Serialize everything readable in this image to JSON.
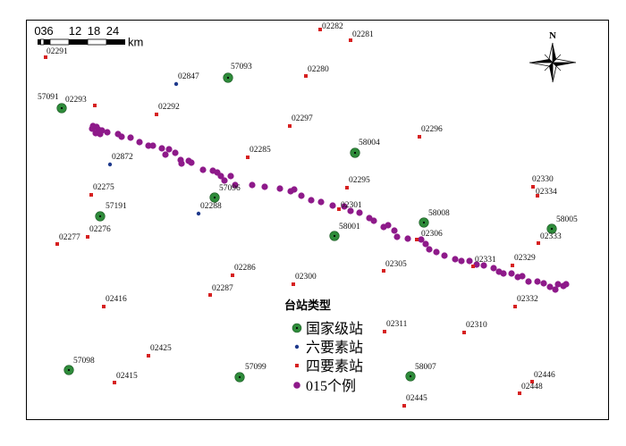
{
  "scale_bar": {
    "ticks": [
      "0",
      "3",
      "6",
      "12",
      "18",
      "24"
    ],
    "unit": "km"
  },
  "north_arrow": {
    "label": "N"
  },
  "legend": {
    "title": "台站类型",
    "items": [
      {
        "type": "national",
        "label": "国家级站",
        "color": "#2e8b3a"
      },
      {
        "type": "six",
        "label": "六要素站",
        "color": "#1f3a8c"
      },
      {
        "type": "four",
        "label": "四要素站",
        "color": "#d62020"
      },
      {
        "type": "case",
        "label": "015个例",
        "color": "#8e1a8a"
      }
    ]
  },
  "stations": [
    {
      "id": "57093",
      "type": "national"
    },
    {
      "id": "57091",
      "type": "national"
    },
    {
      "id": "58004",
      "type": "national"
    },
    {
      "id": "57096",
      "type": "national"
    },
    {
      "id": "57191",
      "type": "national"
    },
    {
      "id": "58008",
      "type": "national"
    },
    {
      "id": "58001",
      "type": "national"
    },
    {
      "id": "58005",
      "type": "national"
    },
    {
      "id": "57098",
      "type": "national"
    },
    {
      "id": "57099",
      "type": "national"
    },
    {
      "id": "58007",
      "type": "national"
    },
    {
      "id": "02847",
      "type": "six"
    },
    {
      "id": "02872",
      "type": "six"
    },
    {
      "id": "02288",
      "type": "six"
    },
    {
      "id": "02282",
      "type": "four"
    },
    {
      "id": "02281",
      "type": "four"
    },
    {
      "id": "02291",
      "type": "four"
    },
    {
      "id": "02280",
      "type": "four"
    },
    {
      "id": "02293",
      "type": "four"
    },
    {
      "id": "02292",
      "type": "four"
    },
    {
      "id": "02297",
      "type": "four"
    },
    {
      "id": "02296",
      "type": "four"
    },
    {
      "id": "02285",
      "type": "four"
    },
    {
      "id": "02295",
      "type": "four"
    },
    {
      "id": "02275",
      "type": "four"
    },
    {
      "id": "02330",
      "type": "four"
    },
    {
      "id": "02334",
      "type": "four"
    },
    {
      "id": "02301",
      "type": "four"
    },
    {
      "id": "02276",
      "type": "four"
    },
    {
      "id": "02277",
      "type": "four"
    },
    {
      "id": "02306",
      "type": "four"
    },
    {
      "id": "02333",
      "type": "four"
    },
    {
      "id": "02331",
      "type": "four"
    },
    {
      "id": "02329",
      "type": "four"
    },
    {
      "id": "02305",
      "type": "four"
    },
    {
      "id": "02286",
      "type": "four"
    },
    {
      "id": "02300",
      "type": "four"
    },
    {
      "id": "02287",
      "type": "four"
    },
    {
      "id": "02332",
      "type": "four"
    },
    {
      "id": "02416",
      "type": "four"
    },
    {
      "id": "02311",
      "type": "four"
    },
    {
      "id": "02310",
      "type": "four"
    },
    {
      "id": "02425",
      "type": "four"
    },
    {
      "id": "02415",
      "type": "four"
    },
    {
      "id": "02446",
      "type": "four"
    },
    {
      "id": "02448",
      "type": "four"
    },
    {
      "id": "02445",
      "type": "four"
    }
  ]
}
